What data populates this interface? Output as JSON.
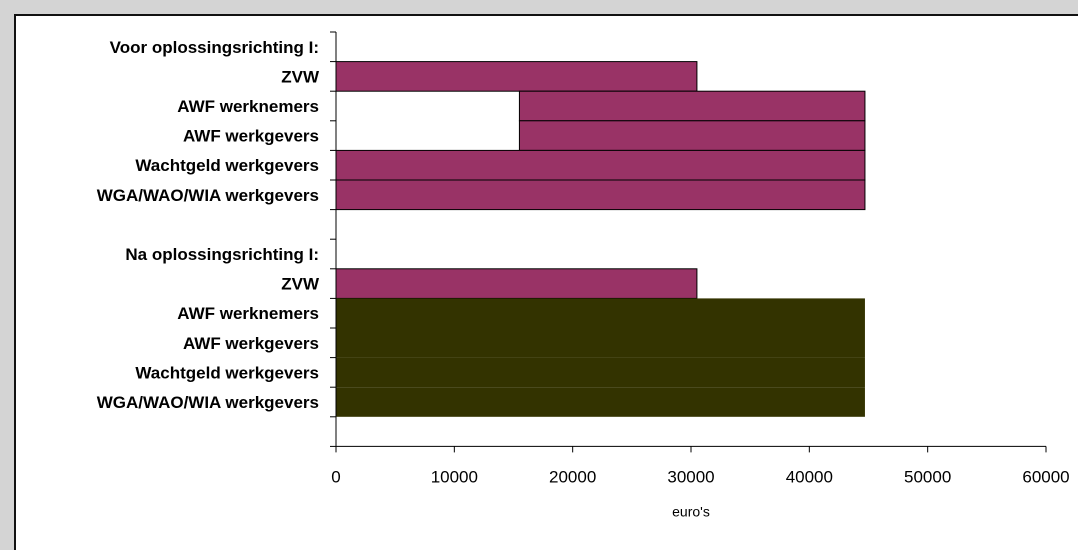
{
  "chart_data": {
    "type": "bar",
    "orientation": "horizontal",
    "stacked": true,
    "xlabel": "euro's",
    "xlim": [
      0,
      60000
    ],
    "xticks": [
      0,
      10000,
      20000,
      30000,
      40000,
      50000,
      60000
    ],
    "grid": false,
    "legend": "none",
    "colors": {
      "bar": "#993366",
      "bar_dark": "#333300",
      "axis": "#000000"
    },
    "categories": [
      {
        "label": "Voor oplossingsrichting I:",
        "bold": true,
        "segments": []
      },
      {
        "label": "ZVW",
        "bold": true,
        "segments": [
          {
            "start": 0,
            "end": 30500,
            "color": "#993366"
          }
        ]
      },
      {
        "label": "AWF werknemers",
        "bold": true,
        "segments": [
          {
            "start": 15500,
            "end": 44700,
            "color": "#993366"
          }
        ]
      },
      {
        "label": "AWF werkgevers",
        "bold": true,
        "segments": [
          {
            "start": 15500,
            "end": 44700,
            "color": "#993366"
          }
        ]
      },
      {
        "label": "Wachtgeld werkgevers",
        "bold": true,
        "segments": [
          {
            "start": 0,
            "end": 44700,
            "color": "#993366"
          }
        ]
      },
      {
        "label": "WGA/WAO/WIA werkgevers",
        "bold": true,
        "segments": [
          {
            "start": 0,
            "end": 44700,
            "color": "#993366"
          }
        ]
      },
      {
        "label": "",
        "bold": true,
        "segments": []
      },
      {
        "label": "Na oplossingsrichting I:",
        "bold": true,
        "segments": []
      },
      {
        "label": "ZVW",
        "bold": true,
        "segments": [
          {
            "start": 0,
            "end": 30500,
            "color": "#993366"
          }
        ]
      },
      {
        "label": "AWF werknemers",
        "bold": true,
        "segments": [
          {
            "start": 0,
            "end": 44700,
            "color": "#333300",
            "group": "na-block"
          }
        ]
      },
      {
        "label": "AWF werkgevers",
        "bold": true,
        "segments": [
          {
            "start": 0,
            "end": 44700,
            "color": "#333300",
            "group": "na-block"
          }
        ]
      },
      {
        "label": "Wachtgeld werkgevers",
        "bold": true,
        "segments": [
          {
            "start": 0,
            "end": 44700,
            "color": "#333300",
            "group": "na-block"
          }
        ]
      },
      {
        "label": "WGA/WAO/WIA werkgevers",
        "bold": true,
        "segments": [
          {
            "start": 0,
            "end": 44700,
            "color": "#333300",
            "group": "na-block"
          }
        ]
      },
      {
        "label": "",
        "bold": true,
        "segments": []
      }
    ]
  }
}
